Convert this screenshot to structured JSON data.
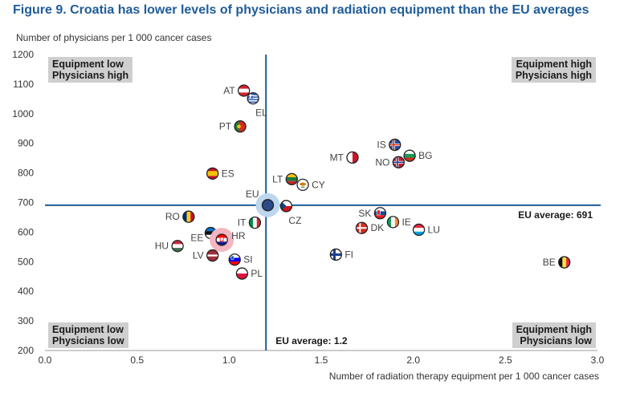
{
  "figure_title": "Figure 9. Croatia has lower levels of physicians and radiation equipment than the EU averages",
  "colors": {
    "title": "#1f5c99",
    "reference_line": "#1f5c99",
    "eu_marker": "#2c4a8a",
    "eu_halo": "#bcd6ee",
    "hr_halo": "#f4b6c2",
    "quadrant_box": "#cfcfcf"
  },
  "quadrants": {
    "top_left": "Equipment low\nPhysicians high",
    "top_right": "Equipment high\nPhysicians high",
    "bottom_left": "Equipment low\nPhysicians low",
    "bottom_right": "Equipment high\nPhysicians low"
  },
  "chart_data": {
    "type": "scatter",
    "title": "Figure 9. Croatia has lower levels of physicians and radiation equipment than the EU averages",
    "xlabel": "Number of radiation therapy equipment per 1 000 cancer cases",
    "ylabel": "Number of physicians per 1 000 cancer cases",
    "xlim": [
      0.0,
      3.0
    ],
    "ylim": [
      200,
      1200
    ],
    "xticks": [
      "0.0",
      "0.5",
      "1.0",
      "1.5",
      "2.0",
      "2.5",
      "3.0"
    ],
    "yticks": [
      "200",
      "300",
      "400",
      "500",
      "600",
      "700",
      "800",
      "900",
      "1000",
      "1100",
      "1200"
    ],
    "grid": false,
    "reference_lines": {
      "x": 1.2,
      "y": 691,
      "x_label": "EU average: 1.2",
      "y_label": "EU average: 691"
    },
    "points": [
      {
        "label": "AT",
        "x": 1.08,
        "y": 1078,
        "flag": "AT",
        "label_side": "left"
      },
      {
        "label": "EL",
        "x": 1.13,
        "y": 1052,
        "flag": "EL",
        "label_side": "below-right"
      },
      {
        "label": "PT",
        "x": 1.06,
        "y": 957,
        "flag": "PT",
        "label_side": "left"
      },
      {
        "label": "ES",
        "x": 0.91,
        "y": 798,
        "flag": "ES",
        "label_side": "right"
      },
      {
        "label": "IS",
        "x": 1.9,
        "y": 895,
        "flag": "IS",
        "label_side": "left"
      },
      {
        "label": "BG",
        "x": 1.98,
        "y": 858,
        "flag": "BG",
        "label_side": "right"
      },
      {
        "label": "MT",
        "x": 1.67,
        "y": 852,
        "flag": "MT",
        "label_side": "left"
      },
      {
        "label": "NO",
        "x": 1.92,
        "y": 836,
        "flag": "NO",
        "label_side": "left"
      },
      {
        "label": "LT",
        "x": 1.34,
        "y": 779,
        "flag": "LT",
        "label_side": "left"
      },
      {
        "label": "CY",
        "x": 1.4,
        "y": 760,
        "flag": "CY",
        "label_side": "right"
      },
      {
        "label": "EU",
        "x": 1.21,
        "y": 691,
        "flag": "EU",
        "label_side": "above-left"
      },
      {
        "label": "CZ",
        "x": 1.31,
        "y": 688,
        "flag": "CZ",
        "label_side": "below-right"
      },
      {
        "label": "SK",
        "x": 1.82,
        "y": 664,
        "flag": "SK",
        "label_side": "left"
      },
      {
        "label": "IE",
        "x": 1.89,
        "y": 634,
        "flag": "IE",
        "label_side": "right"
      },
      {
        "label": "DK",
        "x": 1.72,
        "y": 614,
        "flag": "DK",
        "label_side": "right"
      },
      {
        "label": "LU",
        "x": 2.03,
        "y": 608,
        "flag": "LU",
        "label_side": "right"
      },
      {
        "label": "RO",
        "x": 0.78,
        "y": 652,
        "flag": "RO",
        "label_side": "left"
      },
      {
        "label": "IT",
        "x": 1.14,
        "y": 632,
        "flag": "IT",
        "label_side": "left"
      },
      {
        "label": "EE",
        "x": 0.9,
        "y": 597,
        "flag": "EE",
        "label_side": "below-left"
      },
      {
        "label": "HR",
        "x": 0.96,
        "y": 574,
        "flag": "HR",
        "label_side": "above-right"
      },
      {
        "label": "HU",
        "x": 0.72,
        "y": 553,
        "flag": "HU",
        "label_side": "left"
      },
      {
        "label": "LV",
        "x": 0.91,
        "y": 521,
        "flag": "LV",
        "label_side": "left"
      },
      {
        "label": "SI",
        "x": 1.03,
        "y": 507,
        "flag": "SI",
        "label_side": "right"
      },
      {
        "label": "FI",
        "x": 1.58,
        "y": 524,
        "flag": "FI",
        "label_side": "right"
      },
      {
        "label": "PL",
        "x": 1.07,
        "y": 460,
        "flag": "PL",
        "label_side": "right"
      },
      {
        "label": "BE",
        "x": 2.82,
        "y": 498,
        "flag": "BE",
        "label_side": "left"
      }
    ]
  }
}
